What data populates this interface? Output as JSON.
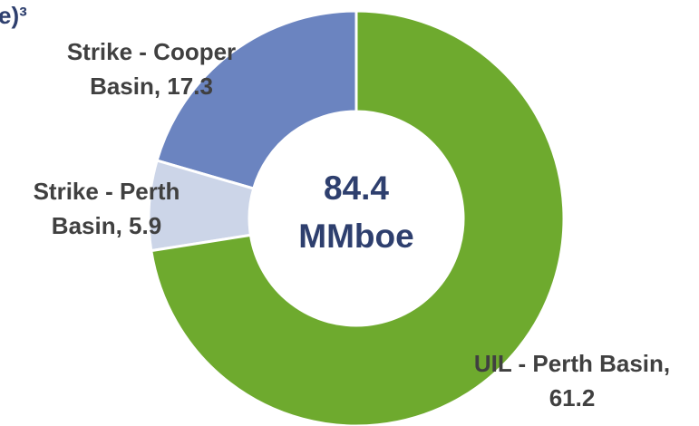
{
  "chart_data": {
    "type": "donut",
    "title": "e)³",
    "categories": [
      "UIL - Perth Basin",
      "Strike - Perth Basin",
      "Strike - Cooper Basin"
    ],
    "values": [
      61.2,
      5.9,
      17.3
    ],
    "value_labels": [
      "UIL - Perth Basin, 61.2",
      "Strike - Perth Basin, 5.9",
      "Strike - Cooper Basin, 17.3"
    ],
    "colors": [
      "#6eaa2e",
      "#ccd5e8",
      "#6b84c0"
    ],
    "center_text": [
      "84.4",
      "MMboe"
    ]
  }
}
